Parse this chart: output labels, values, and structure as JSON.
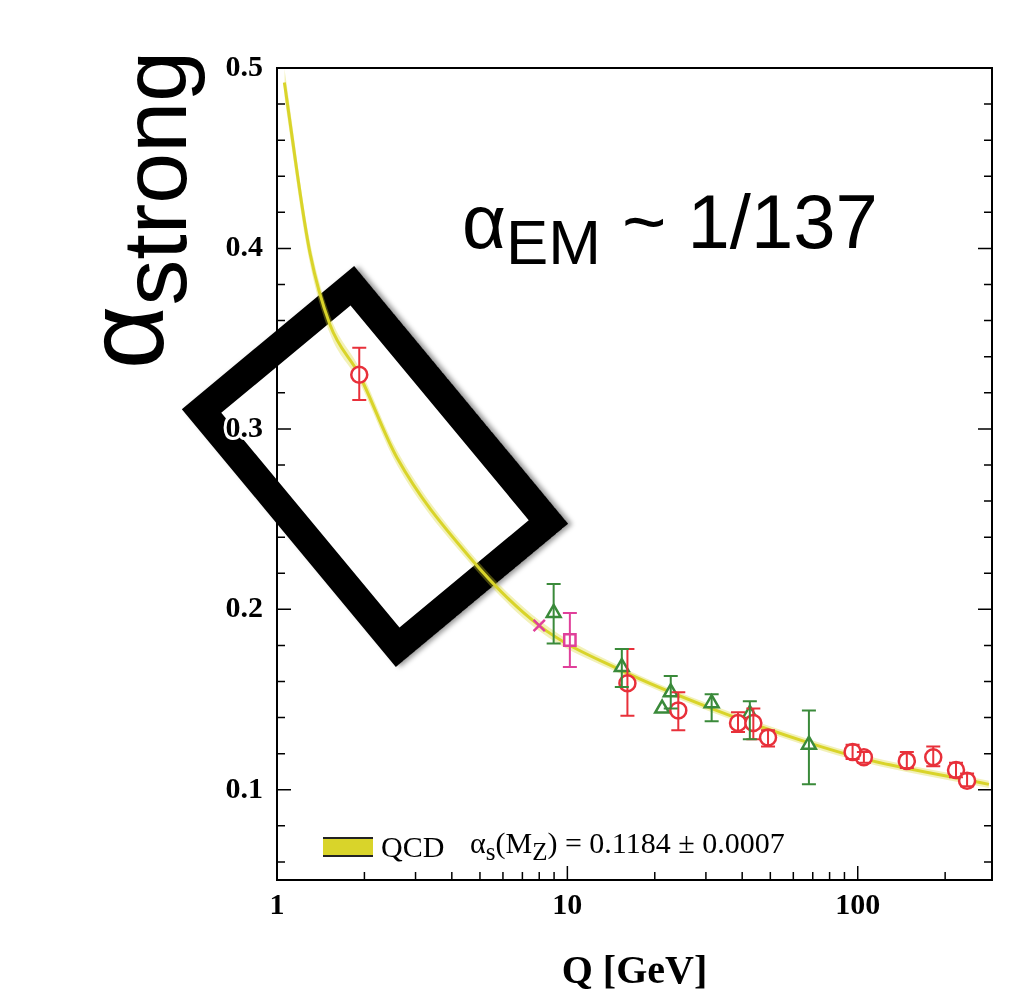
{
  "chart_data": {
    "type": "scatter",
    "xlabel": "Q [GeV]",
    "ylabel": "α$_{strong}$",
    "annotations": [
      "α$_{EM}$ ~ 1/137",
      "α$_{s}$(M$_{Z}$) = 0.1184 ± 0.0007"
    ],
    "log": "x",
    "xlim": [
      1,
      290
    ],
    "ylim": [
      0.05,
      0.5
    ],
    "xticks": [
      1,
      {
        "value": 2,
        "label": null
      },
      {
        "value": 3,
        "label": null
      },
      {
        "value": 4,
        "label": null
      },
      {
        "value": 5,
        "label": null
      },
      {
        "value": 6,
        "label": null
      },
      {
        "value": 7,
        "label": null
      },
      {
        "value": 8,
        "label": null
      },
      {
        "value": 9,
        "label": null
      },
      10,
      {
        "value": 20,
        "label": null
      },
      {
        "value": 30,
        "label": null
      },
      {
        "value": 40,
        "label": null
      },
      {
        "value": 50,
        "label": null
      },
      {
        "value": 60,
        "label": null
      },
      {
        "value": 70,
        "label": null
      },
      {
        "value": 80,
        "label": null
      },
      {
        "value": 90,
        "label": null
      },
      100,
      {
        "value": 200,
        "label": null
      }
    ],
    "yticks": [
      {
        "value": 0.06,
        "label": null
      },
      {
        "value": 0.08,
        "label": null
      },
      0.1,
      {
        "value": 0.12,
        "label": null
      },
      {
        "value": 0.14,
        "label": null
      },
      {
        "value": 0.16,
        "label": null
      },
      {
        "value": 0.18,
        "label": null
      },
      0.2,
      {
        "value": 0.22,
        "label": null
      },
      {
        "value": 0.24,
        "label": null
      },
      {
        "value": 0.26,
        "label": null
      },
      {
        "value": 0.28,
        "label": null
      },
      0.3,
      {
        "value": 0.32,
        "label": null
      },
      {
        "value": 0.34,
        "label": null
      },
      {
        "value": 0.36,
        "label": null
      },
      {
        "value": 0.38,
        "label": null
      },
      0.4,
      {
        "value": 0.42,
        "label": null
      },
      {
        "value": 0.44,
        "label": null
      },
      {
        "value": 0.46,
        "label": null
      },
      {
        "value": 0.48,
        "label": null
      },
      0.5
    ],
    "grid": false,
    "legend": "bottom left",
    "series": [
      {
        "name": "QCD",
        "type": "line",
        "color": "#d9d42a",
        "marker": "none",
        "x": [
          1.06,
          1.29,
          1.52,
          1.92,
          2.59,
          4.6,
          8.0,
          15.4,
          31.4,
          67.9,
          106,
          283
        ],
        "values": [
          0.492,
          0.4,
          0.358,
          0.33,
          0.284,
          0.229,
          0.191,
          0.166,
          0.145,
          0.126,
          0.117,
          0.103
        ],
        "lower": [
          0.484,
          0.394,
          0.353,
          0.326,
          0.28,
          0.226,
          0.188,
          0.164,
          0.143,
          0.124,
          0.115,
          0.101
        ],
        "upper": [
          0.5,
          0.406,
          0.363,
          0.334,
          0.288,
          0.232,
          0.194,
          0.168,
          0.147,
          0.128,
          0.119,
          0.105
        ]
      },
      {
        "color": "#e8303a",
        "marker": "circle",
        "x": [
          16.1,
          24.1,
          38.7,
          43.7,
          49.1,
          96,
          147.6,
          182,
          218,
          238
        ],
        "values": [
          0.159,
          0.144,
          0.137,
          0.137,
          0.129,
          0.121,
          0.116,
          0.118,
          0.111,
          0.105
        ],
        "errors": [
          [
            0.141,
            0.178
          ],
          [
            0.133,
            0.154
          ],
          [
            0.132,
            0.143
          ],
          [
            0.128,
            0.145
          ],
          [
            0.124,
            0.133
          ],
          [
            0.117,
            0.125
          ],
          [
            0.112,
            0.121
          ],
          [
            0.113,
            0.124
          ],
          [
            0.107,
            0.115
          ],
          [
            0.102,
            0.109
          ]
        ]
      },
      {
        "color": "#e8303a",
        "marker": "circle",
        "x": [
          1.92,
          105
        ],
        "values": [
          0.33,
          0.118
        ],
        "errors": [
          [
            0.316,
            0.345
          ],
          [
            0.115,
            0.121
          ]
        ]
      },
      {
        "color": "#3a8a3a",
        "marker": "triangle",
        "x": [
          8.97,
          15.4,
          22.7,
          31.4,
          42.5,
          67.9
        ],
        "values": [
          0.198,
          0.168,
          0.154,
          0.148,
          0.142,
          0.125
        ],
        "errors": [
          [
            0.181,
            0.214
          ],
          [
            0.157,
            0.178
          ],
          [
            0.145,
            0.163
          ],
          [
            0.138,
            0.153
          ],
          [
            0.128,
            0.149
          ],
          [
            0.103,
            0.144
          ]
        ]
      },
      {
        "color": "#3a8a3a",
        "marker": "triangle",
        "x": [
          21.2
        ],
        "values": [
          0.145
        ]
      },
      {
        "color": "#e0409a",
        "marker": "square",
        "x": [
          10.2
        ],
        "values": [
          0.183
        ],
        "errors": [
          [
            0.168,
            0.198
          ]
        ]
      },
      {
        "color": "#e0409a",
        "marker": "cross",
        "x": [
          8.0
        ],
        "values": [
          0.191
        ]
      }
    ]
  }
}
